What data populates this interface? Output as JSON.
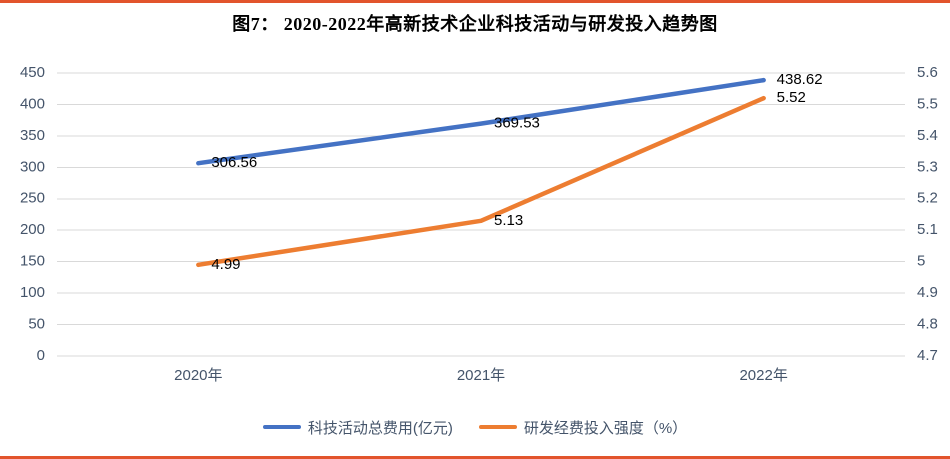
{
  "title": "图7：  2020-2022年高新技术企业科技活动与研发投入趋势图",
  "chart_data": {
    "type": "line",
    "categories": [
      "2020年",
      "2021年",
      "2022年"
    ],
    "series": [
      {
        "name": "科技活动总费用(亿元)",
        "axis": "left",
        "color": "#4472C4",
        "values": [
          306.56,
          369.53,
          438.62
        ],
        "labels": [
          "306.56",
          "369.53",
          "438.62"
        ]
      },
      {
        "name": "研发经费投入强度（%）",
        "axis": "right",
        "color": "#ED7D31",
        "values": [
          4.99,
          5.13,
          5.52
        ],
        "labels": [
          "4.99",
          "5.13",
          "5.52"
        ]
      }
    ],
    "left_axis": {
      "min": 0,
      "max": 450,
      "ticks": [
        "0",
        "50",
        "100",
        "150",
        "200",
        "250",
        "300",
        "350",
        "400",
        "450"
      ]
    },
    "right_axis": {
      "min": 4.7,
      "max": 5.6,
      "ticks": [
        "4.7",
        "4.8",
        "4.9",
        "5",
        "5.1",
        "5.2",
        "5.3",
        "5.4",
        "5.5",
        "5.6"
      ]
    },
    "grid": true,
    "legend_position": "bottom"
  },
  "colors": {
    "grid_line": "#D9D9D9",
    "axis_text": "#44546A",
    "data_label_text": "#000000",
    "page_rule": "#E2542C",
    "title_text": "#000000"
  }
}
